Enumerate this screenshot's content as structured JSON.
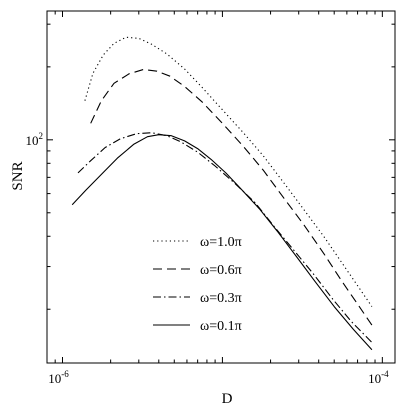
{
  "chart_data": {
    "type": "line",
    "xlabel": "D",
    "ylabel": "SNR",
    "x_scale": "log",
    "y_scale": "log",
    "xlim": [
      8e-07,
      0.00012
    ],
    "ylim": [
      12,
      340
    ],
    "x_ticks": [
      {
        "value": 1e-06,
        "base": "10",
        "exp": "-6"
      },
      {
        "value": 0.0001,
        "base": "10",
        "exp": "-4"
      }
    ],
    "y_ticks": [
      {
        "value": 100,
        "base": "10",
        "exp": "2"
      }
    ],
    "grid": false,
    "legend_position": "lower-center",
    "series": [
      {
        "name": "ω=1.0π",
        "style": "dotted",
        "x": [
          1.38e-06,
          1.55e-06,
          1.8e-06,
          2.1e-06,
          2.5e-06,
          3e-06,
          3.6e-06,
          4.5e-06,
          5.8e-06,
          7.5e-06,
          1e-05,
          1.35e-05,
          1.8e-05,
          2.4e-05,
          3.2e-05,
          4.3e-05,
          5.6e-05,
          7e-05,
          8.6e-05
        ],
        "y": [
          145,
          188,
          224,
          250,
          265,
          262,
          248,
          226,
          196,
          164,
          133,
          107,
          86,
          67,
          52,
          40,
          31,
          25,
          20.5
        ]
      },
      {
        "name": "ω=0.6π",
        "style": "dashed",
        "x": [
          1.5e-06,
          1.75e-06,
          2.1e-06,
          2.6e-06,
          3.2e-06,
          3.9e-06,
          4.7e-06,
          5.8e-06,
          7.5e-06,
          1e-05,
          1.35e-05,
          1.8e-05,
          2.4e-05,
          3.2e-05,
          4.3e-05,
          5.6e-05,
          7e-05,
          8.6e-05
        ],
        "y": [
          117,
          145,
          171,
          187,
          195,
          192,
          183,
          166,
          143,
          117,
          94,
          75,
          58,
          45,
          34,
          26,
          21,
          17.2
        ]
      },
      {
        "name": "ω=0.3π",
        "style": "dashdot",
        "x": [
          1.25e-06,
          1.5e-06,
          1.85e-06,
          2.3e-06,
          2.9e-06,
          3.6e-06,
          4.5e-06,
          5.5e-06,
          7e-06,
          9e-06,
          1.2e-05,
          1.6e-05,
          2.1e-05,
          2.8e-05,
          3.7e-05,
          4.9e-05,
          6.4e-05,
          8.6e-05
        ],
        "y": [
          73,
          82,
          93,
          101,
          106,
          107,
          104,
          98,
          89,
          78,
          66,
          55,
          44,
          35,
          28,
          22,
          17.8,
          14.6
        ]
      },
      {
        "name": "ω=0.1π",
        "style": "solid",
        "x": [
          1.15e-06,
          1.4e-06,
          1.75e-06,
          2.2e-06,
          2.8e-06,
          3.4e-06,
          4e-06,
          4.8e-06,
          5.8e-06,
          7e-06,
          8.5e-06,
          1.05e-05,
          1.3e-05,
          1.7e-05,
          2.2e-05,
          2.9e-05,
          3.8e-05,
          5e-05,
          6.6e-05,
          8.6e-05
        ],
        "y": [
          54,
          62,
          72,
          84,
          96,
          103,
          105,
          104,
          99,
          92,
          83,
          73,
          63,
          52,
          42,
          33,
          26,
          20.5,
          16.5,
          13.6
        ]
      }
    ]
  }
}
